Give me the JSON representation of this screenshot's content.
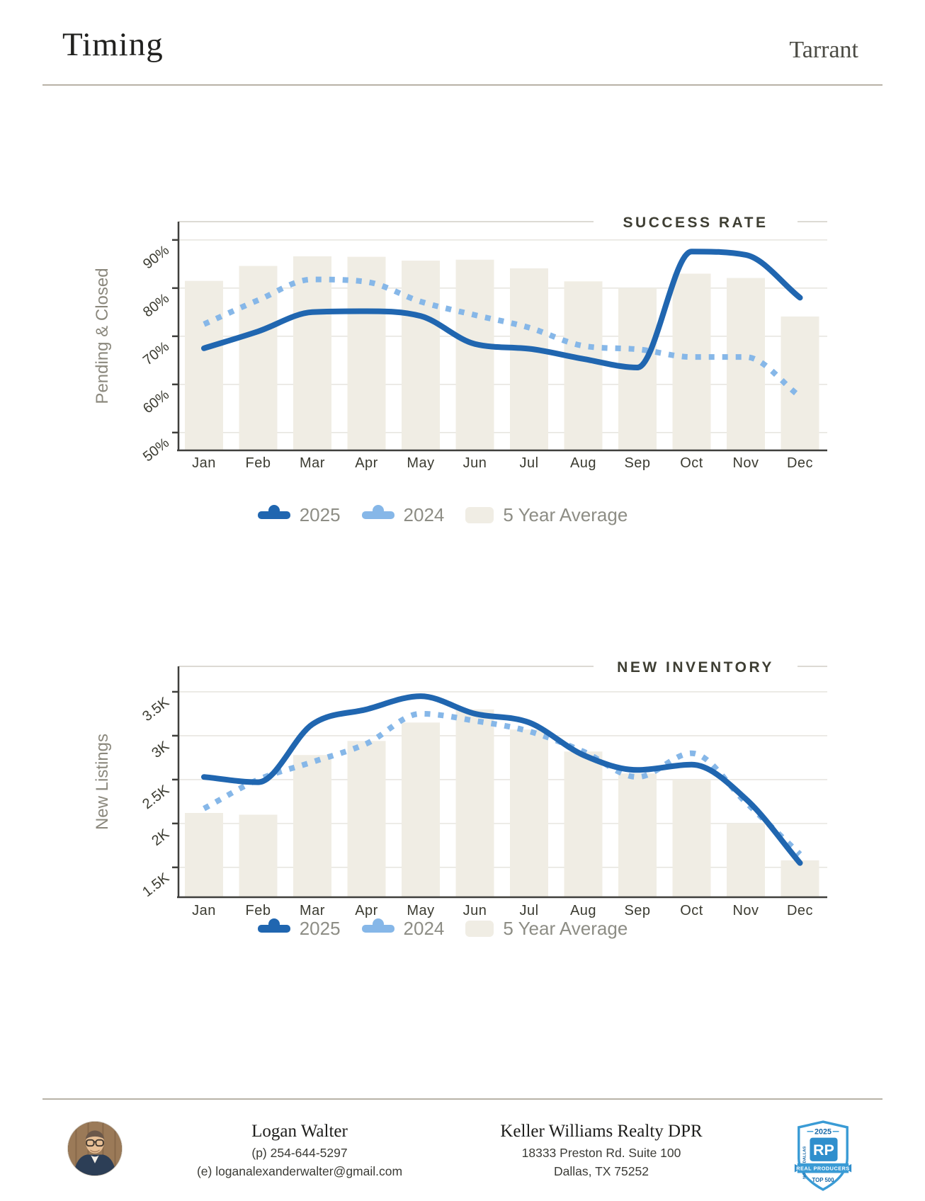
{
  "header": {
    "title": "Timing",
    "region": "Tarrant"
  },
  "chart_data": [
    {
      "type": "combo_bar_line",
      "title": "SUCCESS RATE",
      "xlabel": "",
      "ylabel": "Pending & Closed",
      "categories": [
        "Jan",
        "Feb",
        "Mar",
        "Apr",
        "May",
        "Jun",
        "Jul",
        "Aug",
        "Sep",
        "Oct",
        "Nov",
        "Dec"
      ],
      "ylim": [
        46.3,
        93.8
      ],
      "grid": true,
      "legend_position": "bottom",
      "yticks": [
        {
          "value": 90,
          "label": "90%"
        },
        {
          "value": 80,
          "label": "80%"
        },
        {
          "value": 70,
          "label": "70%"
        },
        {
          "value": 60,
          "label": "60%"
        },
        {
          "value": 50,
          "label": "50%"
        }
      ],
      "series": [
        {
          "name": "2025",
          "type": "line",
          "style": "solid",
          "color": "#2066b0",
          "values": [
            67.5,
            71.0,
            75.0,
            75.2,
            74.2,
            68.4,
            67.4,
            65.3,
            63.5,
            87.6,
            86.9,
            78.0
          ]
        },
        {
          "name": "2024",
          "type": "line",
          "style": "dotted",
          "color": "#86b7e8",
          "values": [
            72.5,
            77.5,
            81.8,
            81.3,
            77.2,
            74.4,
            71.8,
            68.0,
            67.3,
            65.7,
            65.7,
            57.5
          ]
        },
        {
          "name": "5 Year Average",
          "type": "bar",
          "color": "#f0ede4",
          "values": [
            81.5,
            84.6,
            86.6,
            86.5,
            85.7,
            85.9,
            84.1,
            81.4,
            80.0,
            83.0,
            82.1,
            74.1
          ]
        }
      ]
    },
    {
      "type": "combo_bar_line",
      "title": "NEW INVENTORY",
      "xlabel": "",
      "ylabel": "New Listings",
      "categories": [
        "Jan",
        "Feb",
        "Mar",
        "Apr",
        "May",
        "Jun",
        "Jul",
        "Aug",
        "Sep",
        "Oct",
        "Nov",
        "Dec"
      ],
      "ylim": [
        1.16,
        3.79
      ],
      "grid": true,
      "legend_position": "bottom",
      "yticks": [
        {
          "value": 3.5,
          "label": "3.5K"
        },
        {
          "value": 3.0,
          "label": "3K"
        },
        {
          "value": 2.5,
          "label": "2.5K"
        },
        {
          "value": 2.0,
          "label": "2K"
        },
        {
          "value": 1.5,
          "label": "1.5K"
        }
      ],
      "series": [
        {
          "name": "2025",
          "type": "line",
          "style": "solid",
          "color": "#2066b0",
          "values": [
            2.53,
            2.47,
            3.13,
            3.3,
            3.45,
            3.25,
            3.15,
            2.78,
            2.61,
            2.67,
            2.28,
            1.55
          ]
        },
        {
          "name": "2024",
          "type": "line",
          "style": "dotted",
          "color": "#86b7e8",
          "values": [
            2.17,
            2.5,
            2.7,
            2.91,
            3.25,
            3.17,
            3.05,
            2.82,
            2.53,
            2.8,
            2.24,
            1.65
          ]
        },
        {
          "name": "5 Year Average",
          "type": "bar",
          "color": "#f0ede4",
          "values": [
            2.12,
            2.1,
            2.78,
            2.94,
            3.15,
            3.3,
            3.07,
            2.82,
            2.57,
            2.5,
            2.0,
            1.58
          ]
        }
      ]
    }
  ],
  "colors": {
    "accent_2025": "#2066b0",
    "accent_2024": "#86b7e8",
    "bar_fill": "#f0ede4",
    "grid": "#e8e6e1",
    "axis": "#3f3f3c",
    "tick_text": "#3b3b31",
    "title_text": "#3e3e33",
    "axis_label": "#8b887d",
    "legend_text": "#8d8d85",
    "divider": "#b8b2a7"
  },
  "footer": {
    "agent": {
      "name": "Logan Walter",
      "phone": "(p) 254-644-5297",
      "email": "(e) loganalexanderwalter@gmail.com"
    },
    "company": {
      "name": "Keller Williams Realty DPR",
      "address1": "18333 Preston Rd. Suite 100",
      "address2": "Dallas, TX 75252"
    }
  },
  "badge": {
    "year": "2025",
    "initials": "RP",
    "region": "NORTH DALLAS",
    "program": "REAL PRODUCERS",
    "tier": "TOP 500"
  }
}
